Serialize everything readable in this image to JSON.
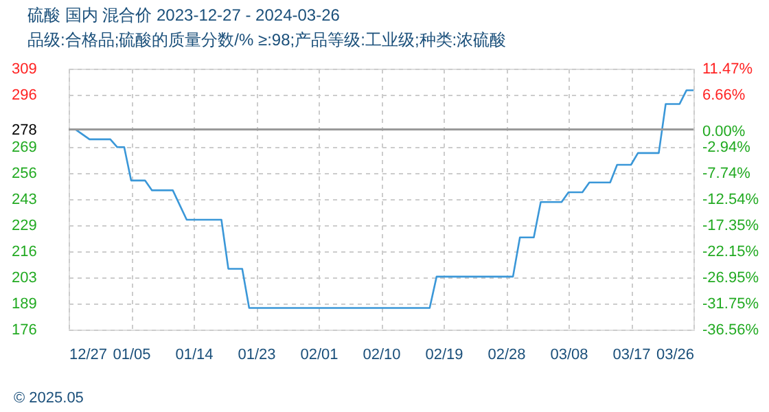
{
  "chart_data": {
    "type": "line",
    "title": "硫酸 国内 混合价 2023-12-27 - 2024-03-26",
    "subtitle": "品级:合格品;硫酸的质量分数/%  ≥:98;产品等级:工业级;种类:浓硫酸",
    "x": [
      "2023-12-27",
      "2023-12-28",
      "2023-12-30",
      "2024-01-02",
      "2024-01-03",
      "2024-01-04",
      "2024-01-05",
      "2024-01-07",
      "2024-01-08",
      "2024-01-11",
      "2024-01-13",
      "2024-01-18",
      "2024-01-19",
      "2024-01-21",
      "2024-01-22",
      "2024-02-17",
      "2024-02-18",
      "2024-02-29",
      "2024-03-01",
      "2024-03-03",
      "2024-03-04",
      "2024-03-07",
      "2024-03-08",
      "2024-03-10",
      "2024-03-11",
      "2024-03-14",
      "2024-03-15",
      "2024-03-17",
      "2024-03-18",
      "2024-03-21",
      "2024-03-22",
      "2024-03-24",
      "2024-03-25",
      "2024-03-26"
    ],
    "series": [
      {
        "color": "#3a97d8",
        "values": [
          278,
          278,
          273,
          273,
          269,
          269,
          252,
          252,
          247,
          247,
          232,
          232,
          207,
          207,
          187,
          187,
          203,
          203,
          223,
          223,
          241,
          241,
          246,
          246,
          251,
          251,
          260,
          260,
          266,
          266,
          291,
          291,
          298,
          298
        ]
      }
    ],
    "xlim": [
      "2023-12-27",
      "2024-03-26"
    ],
    "xticks": [
      {
        "value": "2023-12-27",
        "label": "12/27"
      },
      {
        "value": "2024-01-05",
        "label": "01/05"
      },
      {
        "value": "2024-01-14",
        "label": "01/14"
      },
      {
        "value": "2024-01-23",
        "label": "01/23"
      },
      {
        "value": "2024-02-01",
        "label": "02/01"
      },
      {
        "value": "2024-02-10",
        "label": "02/10"
      },
      {
        "value": "2024-02-19",
        "label": "02/19"
      },
      {
        "value": "2024-02-28",
        "label": "02/28"
      },
      {
        "value": "2024-03-08",
        "label": "03/08"
      },
      {
        "value": "2024-03-17",
        "label": "03/17"
      },
      {
        "value": "2024-03-26",
        "label": "03/26"
      }
    ],
    "ylim": [
      176,
      309
    ],
    "yticks": [
      176,
      {
        "value": 189.3,
        "label": "189"
      },
      {
        "value": 202.6,
        "label": "203"
      },
      {
        "value": 215.9,
        "label": "216"
      },
      {
        "value": 229.2,
        "label": "229"
      },
      {
        "value": 242.5,
        "label": "243"
      },
      {
        "value": 255.8,
        "label": "256"
      },
      {
        "value": 269.1,
        "label": "269"
      },
      278,
      {
        "value": 295.7,
        "label": "296"
      },
      309
    ],
    "y2lim": [
      -36.56,
      11.47
    ],
    "y2ticks": [
      {
        "value": -36.56,
        "label": "-36.56%"
      },
      {
        "value": -31.75,
        "label": "-31.75%"
      },
      {
        "value": -26.95,
        "label": "-26.95%"
      },
      {
        "value": -22.15,
        "label": "-22.15%"
      },
      {
        "value": -17.35,
        "label": "-17.35%"
      },
      {
        "value": -12.54,
        "label": "-12.54%"
      },
      {
        "value": -7.74,
        "label": "-7.74%"
      },
      {
        "value": -2.94,
        "label": "-2.94%"
      },
      {
        "value": 0,
        "label": "0.00%"
      },
      {
        "value": 6.66,
        "label": "6.66%"
      },
      {
        "value": 11.47,
        "label": "11.47%"
      }
    ],
    "ref_lines": [
      {
        "axis": "y",
        "value": 278,
        "color": "#999999"
      }
    ],
    "grid": true,
    "legend": false,
    "marker": "none",
    "line_style": "solid",
    "annotations": [
      "© 2025.05"
    ]
  }
}
